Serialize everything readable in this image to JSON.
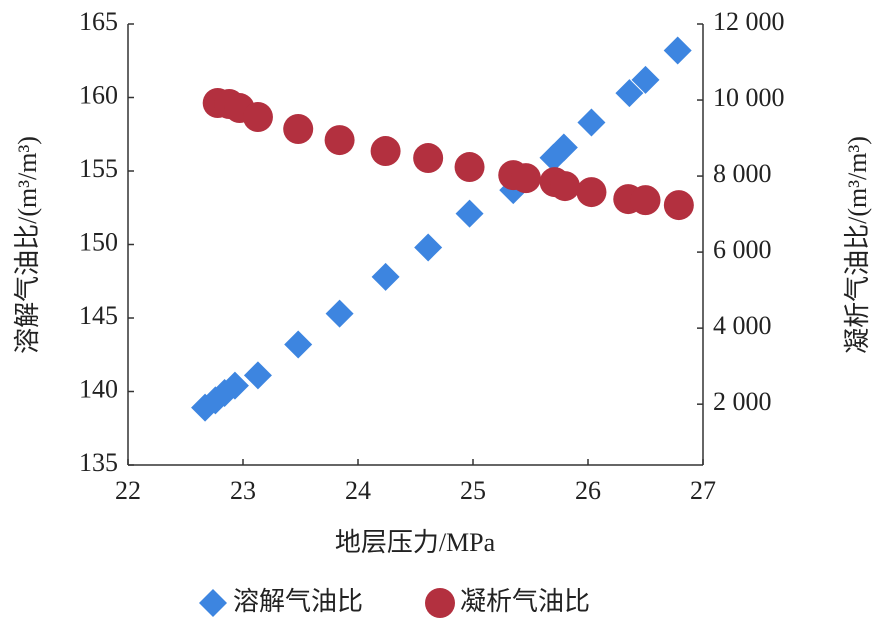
{
  "chart_data": {
    "type": "scatter",
    "x_label": "地层压力/MPa",
    "y_label": "溶解气油比/(m³/m³)",
    "y2_label": "凝析气油比/(m³/m³)",
    "xlim": [
      22,
      27
    ],
    "xticks": [
      22,
      23,
      24,
      25,
      26,
      27
    ],
    "ylim": [
      135,
      165
    ],
    "yticks": [
      135,
      140,
      145,
      150,
      155,
      160,
      165
    ],
    "y2lim": [
      400,
      12000
    ],
    "y2ticks": [
      {
        "value": 2000,
        "label": "2 000"
      },
      {
        "value": 4000,
        "label": "4 000"
      },
      {
        "value": 6000,
        "label": "6 000"
      },
      {
        "value": 8000,
        "label": "8 000"
      },
      {
        "value": 10000,
        "label": "10 000"
      },
      {
        "value": 12000,
        "label": "12 000"
      }
    ],
    "legend": "bottom",
    "series": [
      {
        "name": "溶解气油比",
        "color": "#3d85e0",
        "marker": "diamond",
        "x": [
          22.67,
          22.76,
          22.84,
          22.93,
          23.13,
          23.48,
          23.84,
          24.24,
          24.61,
          24.97,
          25.35,
          25.7,
          25.79,
          26.03,
          26.36,
          26.5,
          26.78
        ],
        "values": [
          138.9,
          139.4,
          139.9,
          140.4,
          141.1,
          143.2,
          145.3,
          147.8,
          149.8,
          152.1,
          153.7,
          155.9,
          156.6,
          158.3,
          160.3,
          161.2,
          163.2
        ]
      },
      {
        "name": "凝析气油比",
        "color": "#b3303f",
        "marker": "circle",
        "axis": "y2",
        "x": [
          22.78,
          22.88,
          22.97,
          23.13,
          23.48,
          23.84,
          24.24,
          24.61,
          24.97,
          25.35,
          25.46,
          25.71,
          25.8,
          26.03,
          26.35,
          26.5,
          26.79
        ],
        "values": [
          9921,
          9895,
          9789,
          9553,
          9237,
          8947,
          8658,
          8474,
          8237,
          8026,
          7947,
          7842,
          7737,
          7579,
          7395,
          7368,
          7237
        ]
      }
    ]
  }
}
